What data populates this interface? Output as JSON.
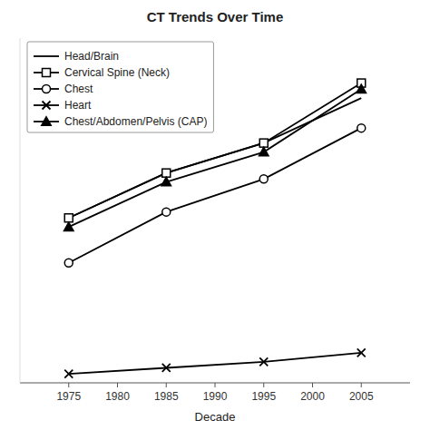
{
  "chart_data": {
    "type": "line",
    "title": "CT Trends Over Time",
    "xlabel": "Decade",
    "x": [
      1975,
      1985,
      1995,
      2005
    ],
    "series": [
      {
        "name": "Head/Brain",
        "color": "#000000",
        "marker": "none",
        "line_style": "solid",
        "values": [
          55,
          70,
          80,
          95
        ]
      },
      {
        "name": "Cervical Spine (Neck)",
        "color": "#000000",
        "marker": "square",
        "line_style": "solid",
        "values": [
          55,
          70,
          80,
          100
        ]
      },
      {
        "name": "Chest",
        "color": "#000000",
        "marker": "circle",
        "line_style": "solid",
        "values": [
          40,
          57,
          68,
          85
        ]
      },
      {
        "name": "Heart",
        "color": "#000000",
        "marker": "x",
        "line_style": "solid",
        "values": [
          3,
          5,
          7,
          10
        ]
      },
      {
        "name": "Chest/Abdomen/Pelvis (CAP)",
        "color": "#000000",
        "marker": "triangle-up",
        "line_style": "solid",
        "values": [
          52,
          67,
          77,
          98
        ]
      }
    ],
    "xlim": [
      1970,
      2010
    ],
    "xticks": [
      1975,
      1980,
      1985,
      1990,
      1995,
      2000,
      2005
    ],
    "ylim": [
      0,
      115
    ],
    "tick_labels": "x",
    "grid": false,
    "legend": "upper left"
  }
}
